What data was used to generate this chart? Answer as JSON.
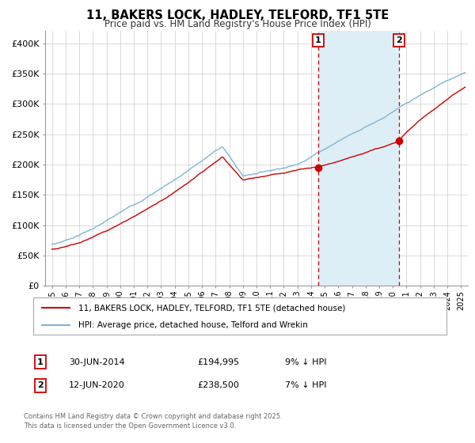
{
  "title": "11, BAKERS LOCK, HADLEY, TELFORD, TF1 5TE",
  "subtitle": "Price paid vs. HM Land Registry's House Price Index (HPI)",
  "legend_line1": "11, BAKERS LOCK, HADLEY, TELFORD, TF1 5TE (detached house)",
  "legend_line2": "HPI: Average price, detached house, Telford and Wrekin",
  "footer": "Contains HM Land Registry data © Crown copyright and database right 2025.\nThis data is licensed under the Open Government Licence v3.0.",
  "sale1_label": "1",
  "sale1_date": "30-JUN-2014",
  "sale1_price": "£194,995",
  "sale1_hpi": "9% ↓ HPI",
  "sale2_label": "2",
  "sale2_date": "12-JUN-2020",
  "sale2_price": "£238,500",
  "sale2_hpi": "7% ↓ HPI",
  "vline1_x": 2014.5,
  "vline2_x": 2020.45,
  "sale1_x": 2014.5,
  "sale1_y": 194995,
  "sale2_x": 2020.45,
  "sale2_y": 238500,
  "red_color": "#cc0000",
  "blue_color": "#7eb6d4",
  "shade_color": "#ddeef7",
  "background_color": "#ffffff",
  "grid_color": "#cccccc",
  "ylim": [
    0,
    420000
  ],
  "xlim": [
    1994.5,
    2025.5
  ],
  "yticks": [
    0,
    50000,
    100000,
    150000,
    200000,
    250000,
    300000,
    350000,
    400000
  ],
  "ytick_labels": [
    "£0",
    "£50K",
    "£100K",
    "£150K",
    "£200K",
    "£250K",
    "£300K",
    "£350K",
    "£400K"
  ],
  "xticks": [
    1995,
    1996,
    1997,
    1998,
    1999,
    2000,
    2001,
    2002,
    2003,
    2004,
    2005,
    2006,
    2007,
    2008,
    2009,
    2010,
    2011,
    2012,
    2013,
    2014,
    2015,
    2016,
    2017,
    2018,
    2019,
    2020,
    2021,
    2022,
    2023,
    2024,
    2025
  ]
}
